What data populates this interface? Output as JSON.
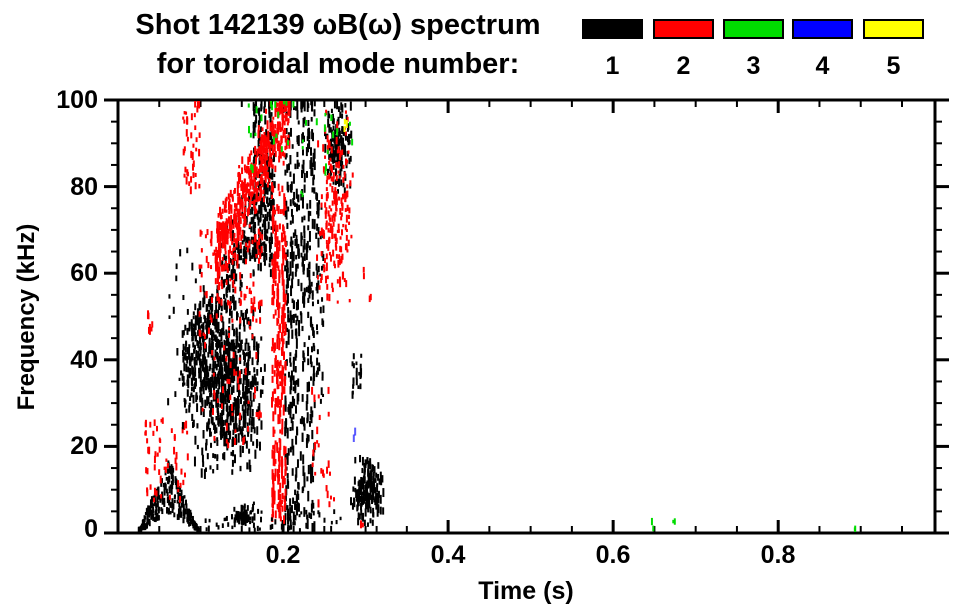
{
  "chart_data": {
    "type": "scatter",
    "title_line1": "Shot 142139 ωB(ω) spectrum",
    "title_line2": "for toroidal mode number:",
    "xlabel": "Time (s)",
    "ylabel": "Frequency (kHz)",
    "x_range": [
      0,
      0.99
    ],
    "y_range": [
      0,
      100
    ],
    "x_major": [
      0,
      0.2,
      0.4,
      0.6,
      0.8
    ],
    "x_minor_step": 0.05,
    "y_major": [
      0,
      20,
      40,
      60,
      80,
      100
    ],
    "y_minor_step": 5,
    "x_tick_labels": [
      "0.2",
      "0.4",
      "0.6",
      "0.8"
    ],
    "y_tick_labels": [
      "0",
      "20",
      "40",
      "60",
      "80",
      "100"
    ],
    "grid": false,
    "legend_position": "top-right",
    "modes": [
      {
        "label": "1",
        "color": "#000000"
      },
      {
        "label": "2",
        "color": "#FF0000"
      },
      {
        "label": "3",
        "color": "#00DC00"
      },
      {
        "label": "4",
        "color": "#0000FF"
      },
      {
        "label": "5",
        "color": "#FFFF00"
      }
    ],
    "clusters": [
      {
        "m": 1,
        "shape": "hill",
        "t": [
          0.025,
          0.098
        ],
        "f": [
          0.5,
          17
        ],
        "count": 240,
        "h": [
          3,
          7
        ]
      },
      {
        "m": 2,
        "shape": "uniform",
        "t": [
          0.033,
          0.085
        ],
        "f": [
          7,
          26
        ],
        "count": 55
      },
      {
        "m": 2,
        "shape": "uniform",
        "t": [
          0.036,
          0.046
        ],
        "f": [
          45,
          52
        ],
        "count": 8
      },
      {
        "m": 1,
        "shape": "uniform",
        "t": [
          0.06,
          0.1
        ],
        "f": [
          25,
          66
        ],
        "count": 26
      },
      {
        "m": 2,
        "shape": "uniform",
        "t": [
          0.079,
          0.099
        ],
        "f": [
          76,
          100
        ],
        "count": 40
      },
      {
        "m": 1,
        "shape": "diag",
        "t": [
          0.078,
          0.19
        ],
        "f0": 36,
        "f1": 82,
        "jitter": 13,
        "count": 420,
        "h": [
          3,
          9
        ]
      },
      {
        "m": 1,
        "shape": "blob",
        "t": [
          0.085,
          0.18
        ],
        "f": [
          12,
          55
        ],
        "count": 640,
        "h": [
          4,
          10
        ]
      },
      {
        "m": 1,
        "shape": "vband",
        "cols": [
          0.205,
          0.211,
          0.217,
          0.224,
          0.231,
          0.236
        ],
        "t_jit": 0.0025,
        "f": [
          0,
          101
        ],
        "count": 430,
        "h": [
          4,
          11
        ]
      },
      {
        "m": 1,
        "shape": "blob",
        "t": [
          0.248,
          0.285
        ],
        "f": [
          78,
          101
        ],
        "count": 150,
        "h": [
          4,
          9
        ]
      },
      {
        "m": 1,
        "shape": "vband",
        "cols": [
          0.166,
          0.172,
          0.179,
          0.185
        ],
        "t_jit": 0.002,
        "f": [
          60,
          101
        ],
        "count": 170,
        "h": [
          4,
          9
        ]
      },
      {
        "m": 1,
        "shape": "vband",
        "cols": [
          0.242,
          0.247
        ],
        "t_jit": 0.002,
        "f": [
          30,
          80
        ],
        "count": 50
      },
      {
        "m": 2,
        "shape": "diag",
        "t": [
          0.118,
          0.208
        ],
        "f0": 64,
        "f1": 98,
        "jitter": 11,
        "count": 500,
        "h": [
          3,
          9
        ]
      },
      {
        "m": 2,
        "shape": "uniform",
        "t": [
          0.098,
          0.175
        ],
        "f": [
          45,
          70
        ],
        "count": 110
      },
      {
        "m": 2,
        "shape": "vband",
        "cols": [
          0.189,
          0.195,
          0.201
        ],
        "t_jit": 0.0025,
        "f": [
          3,
          80
        ],
        "count": 270,
        "h": [
          4,
          11
        ]
      },
      {
        "m": 2,
        "shape": "blob",
        "t": [
          0.238,
          0.285
        ],
        "f": [
          50,
          100
        ],
        "count": 190
      },
      {
        "m": 2,
        "shape": "uniform",
        "t": [
          0.235,
          0.262
        ],
        "f": [
          4,
          35
        ],
        "count": 26
      },
      {
        "m": 2,
        "shape": "uniform",
        "t": [
          0.1,
          0.175
        ],
        "f": [
          20,
          45
        ],
        "count": 45
      },
      {
        "m": 1,
        "shape": "blob",
        "t": [
          0.282,
          0.322
        ],
        "f": [
          0.5,
          18
        ],
        "count": 170,
        "h": [
          4,
          9
        ]
      },
      {
        "m": 1,
        "shape": "uniform",
        "t": [
          0.284,
          0.296
        ],
        "f": [
          31,
          42
        ],
        "count": 20
      },
      {
        "m": 1,
        "shape": "uniform",
        "t": [
          0.1,
          0.27
        ],
        "f": [
          0.5,
          5
        ],
        "count": 55,
        "h": [
          3,
          6
        ]
      },
      {
        "m": 1,
        "shape": "blob",
        "t": [
          0.138,
          0.168
        ],
        "f": [
          1,
          7
        ],
        "count": 55
      },
      {
        "m": 3,
        "shape": "uniform",
        "t": [
          0.148,
          0.285
        ],
        "f": [
          88,
          101
        ],
        "count": 30
      },
      {
        "m": 3,
        "shape": "points",
        "points": [
          [
            0.163,
            84
          ],
          [
            0.224,
            78
          ],
          [
            0.252,
            84
          ]
        ],
        "per": 2
      },
      {
        "m": 3,
        "shape": "points",
        "points": [
          [
            0.648,
            1.8
          ],
          [
            0.673,
            2.3
          ],
          [
            0.892,
            1.8
          ]
        ],
        "per": 2
      },
      {
        "m": 4,
        "shape": "points",
        "points": [
          [
            0.287,
            22.5
          ]
        ],
        "per": 2,
        "opacity": 0.65
      },
      {
        "m": 5,
        "shape": "points",
        "points": [
          [
            0.276,
            94
          ]
        ],
        "per": 3
      },
      {
        "m": 2,
        "shape": "points",
        "points": [
          [
            0.296,
            1.5
          ],
          [
            0.305,
            55
          ],
          [
            0.299,
            60
          ]
        ],
        "per": 2
      }
    ]
  }
}
